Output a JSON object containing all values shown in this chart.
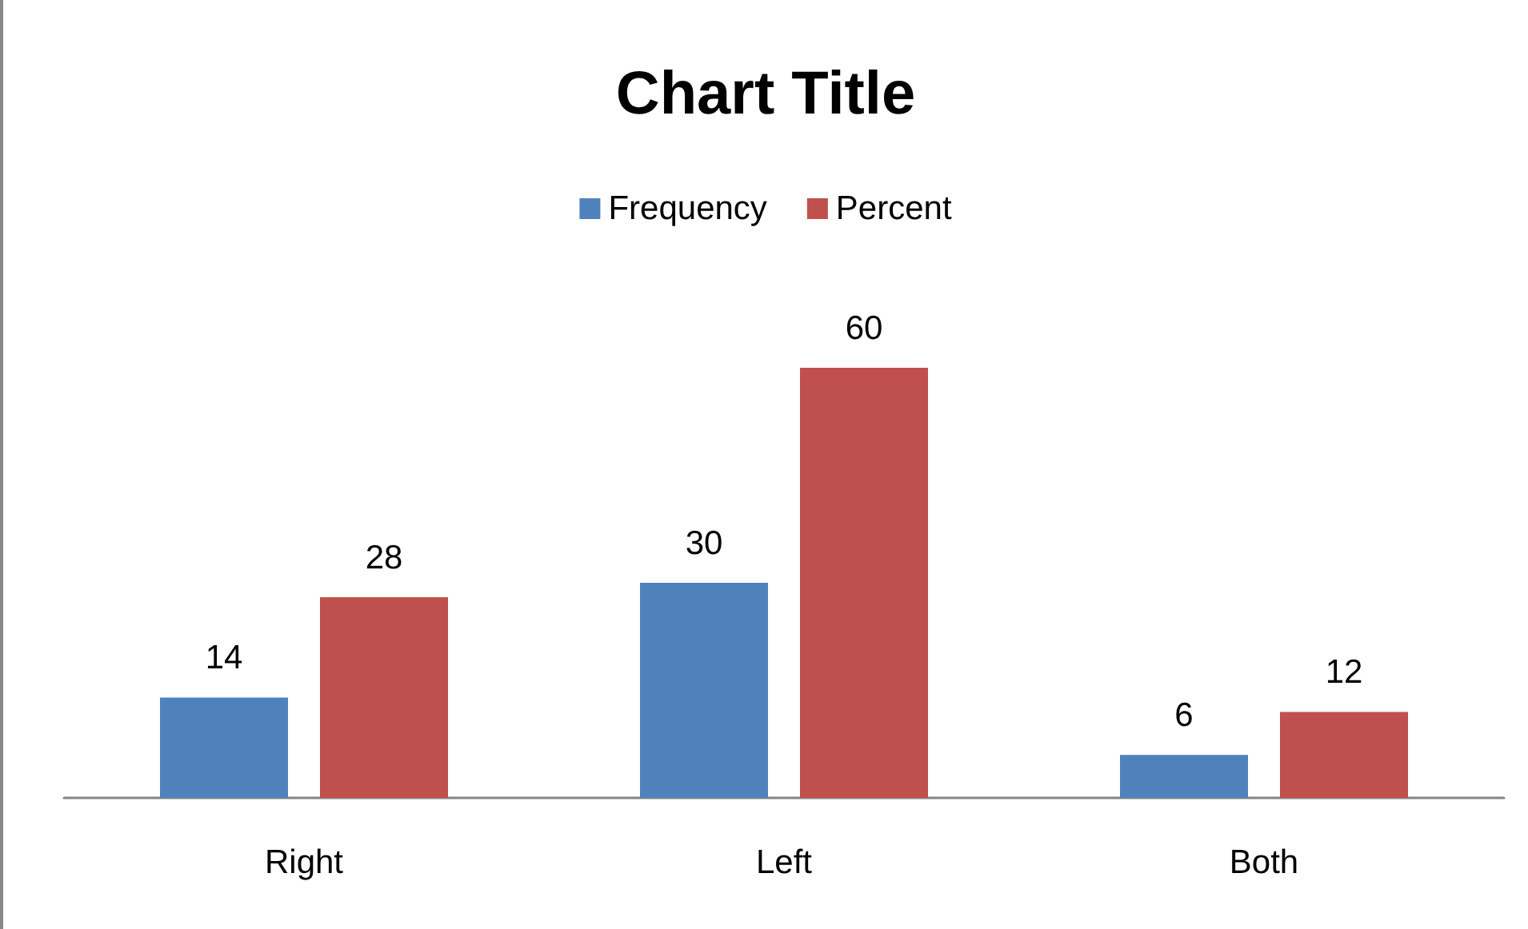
{
  "chart_data": {
    "type": "bar",
    "title": "Chart Title",
    "categories": [
      "Right",
      "Left",
      "Both"
    ],
    "series": [
      {
        "name": "Frequency",
        "color": "#4f81bd",
        "values": [
          14,
          30,
          6
        ]
      },
      {
        "name": "Percent",
        "color": "#c0504d",
        "values": [
          28,
          60,
          12
        ]
      }
    ],
    "data_labels": true,
    "legend": "top"
  }
}
